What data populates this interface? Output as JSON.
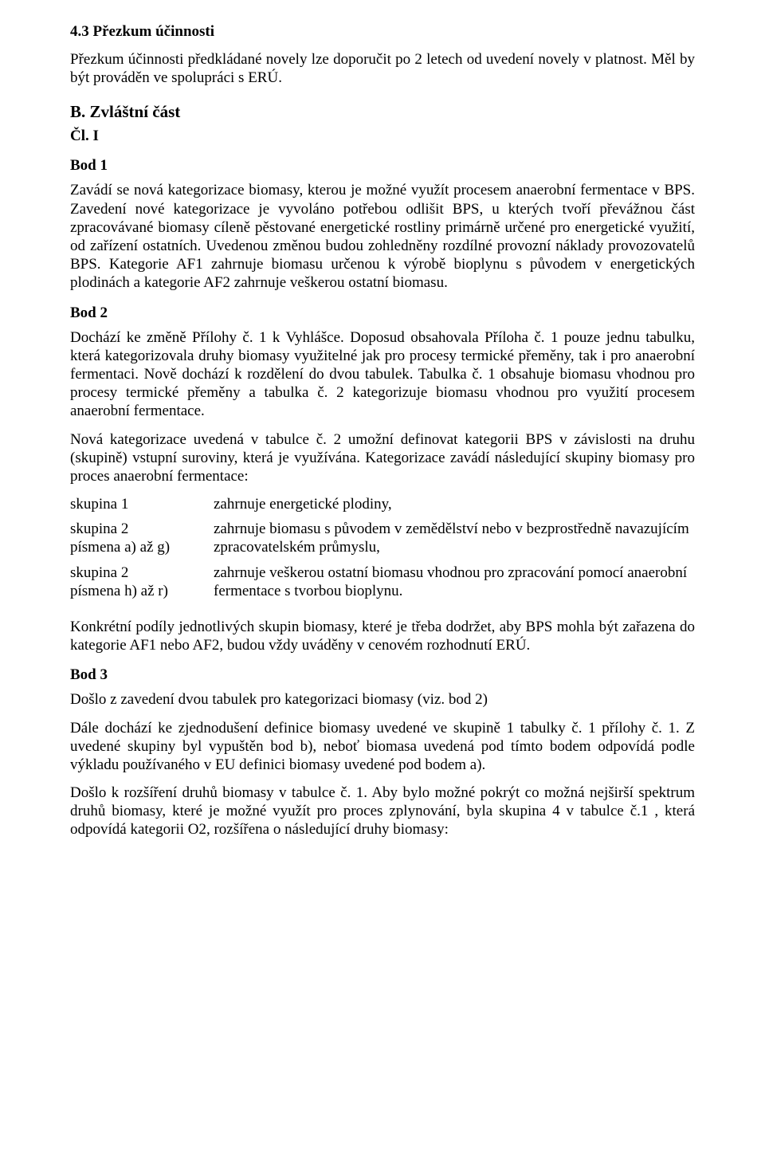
{
  "section_43": {
    "heading": "4.3 Přezkum účinnosti",
    "para": "Přezkum účinnosti předkládané novely lze doporučit po 2 letech od uvedení novely v platnost. Měl by být prováděn ve spolupráci s ERÚ."
  },
  "part_b": {
    "heading": "B.  Zvláštní  část",
    "article": "Čl. I"
  },
  "point1": {
    "heading": "Bod 1",
    "para": "Zavádí se nová kategorizace biomasy, kterou je možné využít procesem anaerobní fermentace v BPS. Zavedení nové kategorizace je vyvoláno potřebou odlišit BPS, u kterých tvoří převážnou část zpracovávané biomasy cíleně pěstované energetické rostliny primárně určené pro energetické využití, od zařízení ostatních. Uvedenou změnou budou zohledněny rozdílné provozní náklady provozovatelů BPS. Kategorie AF1 zahrnuje biomasu určenou k výrobě bioplynu s původem v energetických plodinách a kategorie AF2 zahrnuje veškerou ostatní biomasu."
  },
  "point2": {
    "heading": "Bod 2",
    "para1": "Dochází ke změně Přílohy č. 1 k Vyhlášce. Doposud obsahovala Příloha č. 1 pouze jednu tabulku, která kategorizovala druhy biomasy využitelné jak pro procesy termické přeměny, tak i pro anaerobní fermentaci. Nově dochází k rozdělení do dvou tabulek. Tabulka č. 1 obsahuje biomasu vhodnou pro procesy termické přeměny a tabulka č. 2 kategorizuje biomasu vhodnou pro využití procesem anaerobní fermentace.",
    "para2": "Nová kategorizace uvedená v tabulce č. 2 umožní definovat kategorii BPS v závislosti na druhu (skupině) vstupní suroviny, která je využívána. Kategorizace zavádí následující skupiny biomasy pro proces anaerobní fermentace:",
    "groups": [
      {
        "label_line1": "skupina 1",
        "label_line2": "",
        "desc": "zahrnuje energetické plodiny,"
      },
      {
        "label_line1": "skupina 2",
        "label_line2": "písmena a) až g)",
        "desc": "zahrnuje biomasu s původem v zemědělství nebo v bezprostředně navazujícím zpracovatelském průmyslu,"
      },
      {
        "label_line1": "skupina 2",
        "label_line2": "písmena h) až r)",
        "desc": "zahrnuje veškerou ostatní biomasu vhodnou pro zpracování pomocí anaerobní fermentace s tvorbou bioplynu."
      }
    ],
    "para3": "Konkrétní podíly jednotlivých skupin biomasy, které je třeba dodržet, aby BPS mohla být zařazena do kategorie AF1 nebo AF2, budou vždy uváděny v cenovém rozhodnutí ERÚ."
  },
  "point3": {
    "heading": "Bod 3",
    "para1": "Došlo z zavedení dvou tabulek pro kategorizaci biomasy (viz. bod 2)",
    "para2": "Dále dochází ke zjednodušení definice biomasy uvedené ve skupině 1 tabulky č. 1 přílohy č. 1. Z uvedené skupiny byl vypuštěn bod b), neboť biomasa uvedená pod tímto bodem odpovídá podle výkladu používaného v EU definici biomasy uvedené pod bodem a).",
    "para3": "Došlo k rozšíření druhů biomasy v tabulce č. 1. Aby bylo možné pokrýt co možná nejširší spektrum druhů biomasy, které je možné využít pro proces zplynování, byla skupina 4 v tabulce č.1 , která odpovídá kategorii O2, rozšířena o následující druhy biomasy:"
  }
}
